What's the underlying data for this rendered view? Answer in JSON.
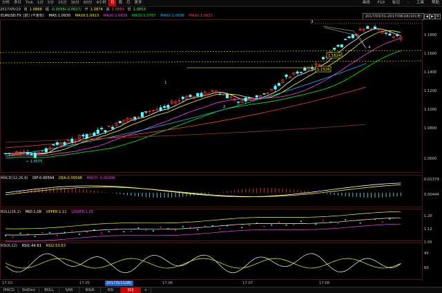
{
  "toolbar": {
    "items": [
      "分时",
      "多日",
      "Tick",
      "1分",
      "5分",
      "15分",
      "30分",
      "60分",
      "4小时",
      "日",
      "周",
      "月",
      "更多"
    ],
    "active_index": 9,
    "right_items": [
      "画线",
      "F10",
      "标记",
      "-",
      "工具",
      "帮助"
    ]
  },
  "info": {
    "date": "2017/05/10",
    "close_label": "收",
    "close_value": "1.0868",
    "change_label": "幅",
    "change_value": "-0.0056(-0.0027)",
    "open_label": "开",
    "open_value": "1.0874",
    "high_label": "高",
    "high_value": "1.0889",
    "low_label": "低",
    "low_value": "1.0853"
  },
  "main_header": {
    "symbol": "EURUSD.FX",
    "adjust": "[前] (不复权)",
    "ma": [
      "MA5:1.0930",
      "MA10:1.0913",
      "MA20:1.0839",
      "MA30:1.0767",
      "MA60:1.0698",
      "MA90:1.0825"
    ],
    "range_label": "2017/03/31-2017/08/18(101天)"
  },
  "indicators": {
    "macd": [
      "MACD(12,26,9)",
      "DIF:0.00594",
      "DEA:0.00598",
      "MACD:-0.00008"
    ],
    "boll": [
      "BOLL(26,2)",
      "MID:1.08",
      "UPPER:1.11",
      "LOWER:1.05"
    ],
    "rsi": [
      "RSI(6,12)",
      "RSI1:44.61",
      "RSI2:53.63"
    ]
  },
  "y_axes": {
    "main": [
      "1.1800",
      "1.1600",
      "1.1400",
      "1.1200",
      "1.1000",
      "1.0800",
      "1.0600"
    ],
    "macd": [
      "0.01379",
      "0.00444"
    ],
    "boll": [
      "1.20",
      "1.12",
      "1.05"
    ],
    "rsi": [
      "90",
      "60"
    ]
  },
  "annotations": {
    "boxes": [
      "1.1624",
      "1.1526"
    ],
    "low_label": "← 1.0575",
    "points": [
      "1",
      "2",
      "3",
      "4"
    ]
  },
  "x_axis": {
    "labels": [
      "17.03",
      "17.05",
      "17.06",
      "17.07",
      "17.08"
    ],
    "highlight": "2017/5/11(四)"
  },
  "tabs": {
    "items": [
      "MACD",
      "StdDev",
      "BOLL",
      "SAR",
      "W&R",
      "RSI",
      "KDJ",
      "+"
    ],
    "active_index": 6
  },
  "colors": {
    "up": "#ff3232",
    "down": "#54ffff",
    "ma5": "#ffffff",
    "ma10": "#ffff00",
    "ma20": "#ff40ff",
    "ma30": "#00ff00",
    "ma60": "#00bfff",
    "ma90": "#ff4040",
    "accent": "#cc0000"
  }
}
